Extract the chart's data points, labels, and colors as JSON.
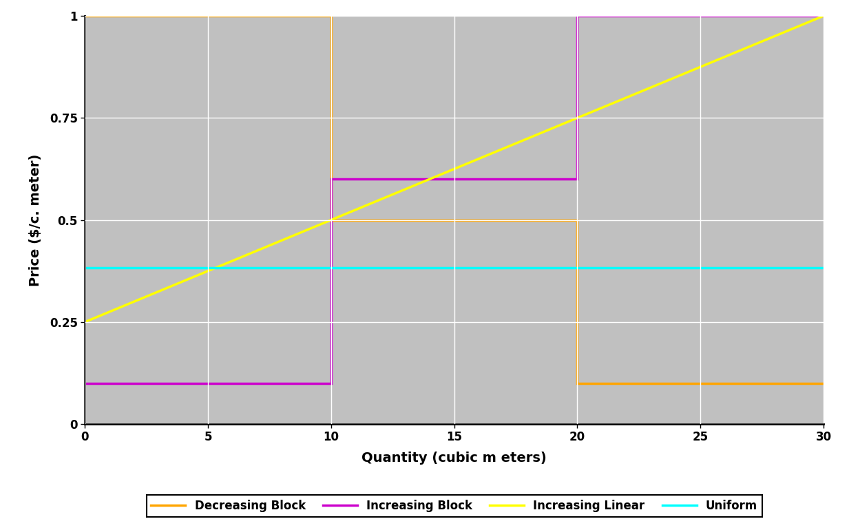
{
  "title": "",
  "xlabel": "Quantity (cubic m eters)",
  "ylabel": "Price ($/c. meter)",
  "xlim": [
    0,
    30
  ],
  "ylim": [
    0,
    1.0
  ],
  "ytick_values": [
    0,
    0.25,
    0.5,
    0.75,
    1.0
  ],
  "ytick_labels": [
    "0",
    "0.25",
    "0.5",
    "0.75",
    "1"
  ],
  "xticks": [
    0,
    5,
    10,
    15,
    20,
    25,
    30
  ],
  "plot_bg_color": "#c0c0c0",
  "grid_color": "#ffffff",
  "decreasing_block": {
    "x": [
      0,
      10,
      10,
      20,
      20,
      30
    ],
    "y": [
      1.0,
      1.0,
      0.5,
      0.5,
      0.1,
      0.1
    ],
    "color": "#FFA500",
    "linewidth": 2.5,
    "label": "Decreasing Block"
  },
  "increasing_block": {
    "x": [
      0,
      10,
      10,
      20,
      20,
      30
    ],
    "y": [
      0.1,
      0.1,
      0.6,
      0.6,
      1.0,
      1.0
    ],
    "color": "#CC00CC",
    "linewidth": 2.5,
    "label": "Increasing Block"
  },
  "increasing_linear": {
    "x": [
      0,
      30
    ],
    "y": [
      0.25,
      1.0
    ],
    "color": "#FFFF00",
    "linewidth": 2.5,
    "label": "Increasing Linear"
  },
  "uniform": {
    "x": [
      0,
      30
    ],
    "y": [
      0.383,
      0.383
    ],
    "color": "#00FFFF",
    "linewidth": 2.5,
    "label": "Uniform"
  },
  "legend_fontsize": 12,
  "axis_label_fontsize": 14,
  "tick_fontsize": 12,
  "axis_label_fontweight": "bold",
  "tick_fontweight": "bold"
}
